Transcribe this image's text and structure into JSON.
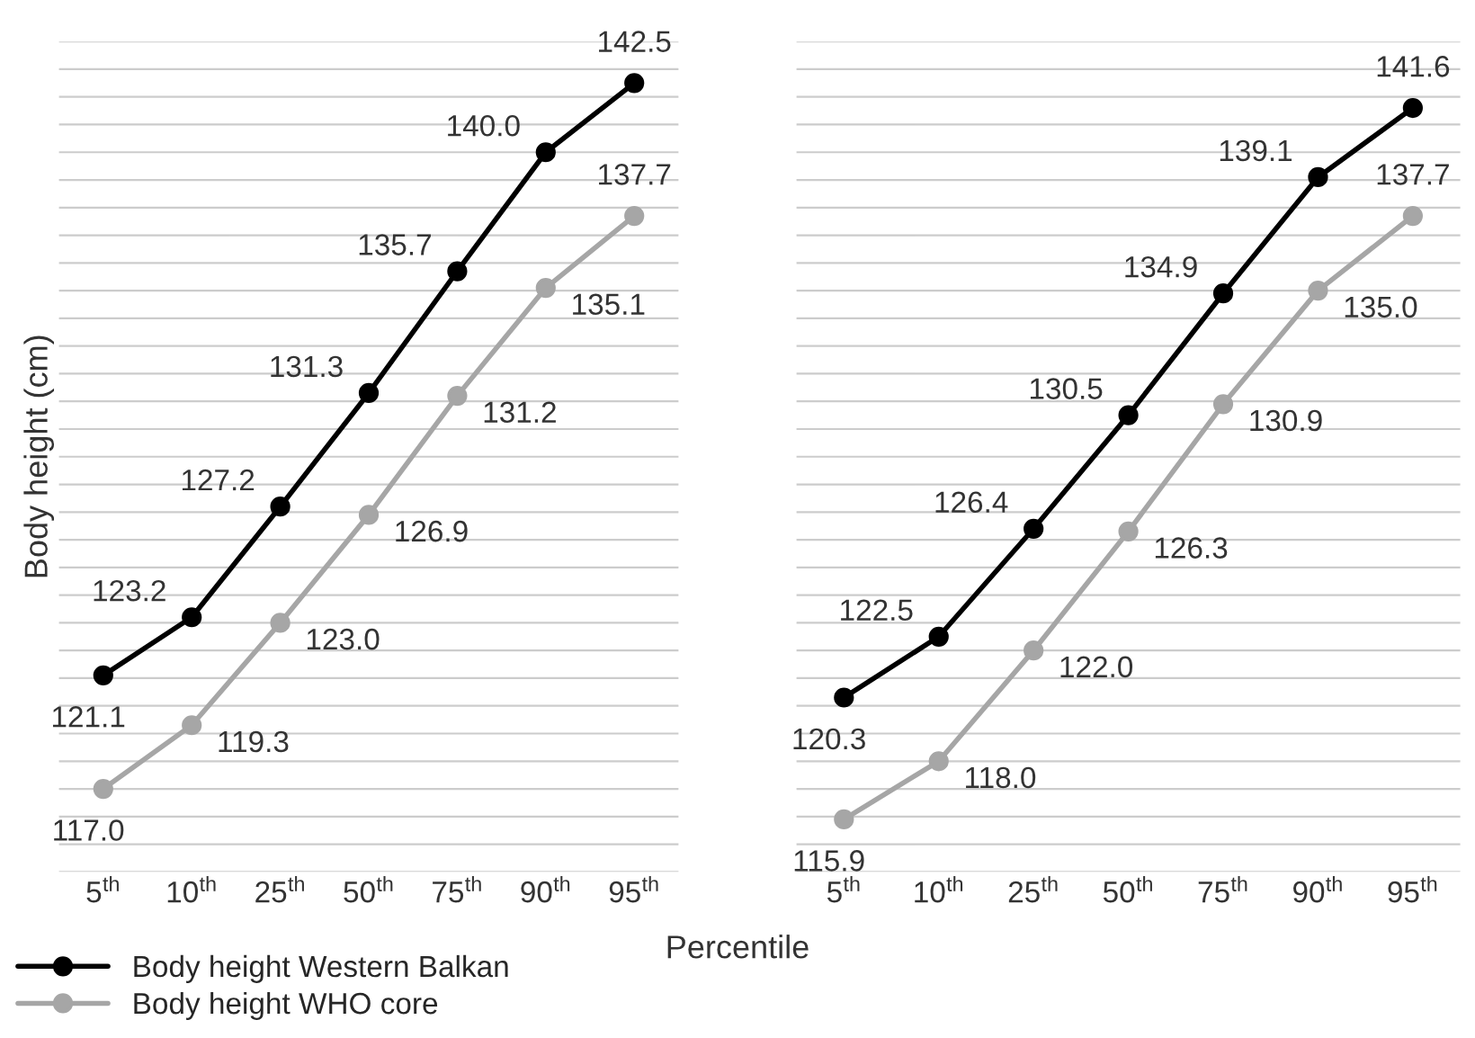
{
  "chart_data": [
    {
      "type": "line",
      "ylabel": "Body height (cm)",
      "xlabel": "Percentile",
      "categories": [
        "5$^{th}$",
        "10$^{th}$",
        "25$^{th}$",
        "50$^{th}$",
        "75$^{th}$",
        "90$^{th}$",
        "95$^{th}$"
      ],
      "series": [
        {
          "name": "Body height Western Balkan",
          "color": "#000000",
          "values": [
            121.1,
            123.2,
            127.2,
            131.3,
            135.7,
            140.0,
            142.5
          ],
          "value_labels": [
            "121.1",
            "123.2",
            "127.2",
            "131.3",
            "135.7",
            "140.0",
            "142.5"
          ]
        },
        {
          "name": "Body height WHO core",
          "color": "#a6a6a6",
          "values": [
            117.0,
            119.3,
            123.0,
            126.9,
            131.2,
            135.1,
            137.7
          ],
          "value_labels": [
            "117.0",
            "119.3",
            "123.0",
            "126.9",
            "131.2",
            "135.1",
            "137.7"
          ]
        }
      ],
      "ylim": [
        114,
        144
      ],
      "yticks": [
        {
          "value": 114,
          "label": null
        },
        {
          "value": 115,
          "label": null
        },
        {
          "value": 116,
          "label": null
        },
        {
          "value": 117,
          "label": null
        },
        {
          "value": 118,
          "label": null
        },
        {
          "value": 119,
          "label": null
        },
        {
          "value": 120,
          "label": null
        },
        {
          "value": 121,
          "label": null
        },
        {
          "value": 122,
          "label": null
        },
        {
          "value": 123,
          "label": null
        },
        {
          "value": 124,
          "label": null
        },
        {
          "value": 125,
          "label": null
        },
        {
          "value": 126,
          "label": null
        },
        {
          "value": 127,
          "label": null
        },
        {
          "value": 128,
          "label": null
        },
        {
          "value": 129,
          "label": null
        },
        {
          "value": 130,
          "label": null
        },
        {
          "value": 131,
          "label": null
        },
        {
          "value": 132,
          "label": null
        },
        {
          "value": 133,
          "label": null
        },
        {
          "value": 134,
          "label": null
        },
        {
          "value": 135,
          "label": null
        },
        {
          "value": 136,
          "label": null
        },
        {
          "value": 137,
          "label": null
        },
        {
          "value": 138,
          "label": null
        },
        {
          "value": 139,
          "label": null
        },
        {
          "value": 140,
          "label": null
        },
        {
          "value": 141,
          "label": null
        },
        {
          "value": 142,
          "label": null
        },
        {
          "value": 143,
          "label": null
        },
        {
          "value": 144,
          "label": null
        }
      ],
      "tick_labels": "x",
      "grid": "y",
      "marker": "circle",
      "line_style": "solid",
      "legend": "bottom left"
    },
    {
      "type": "line",
      "categories": [
        "5$^{th}$",
        "10$^{th}$",
        "25$^{th}$",
        "50$^{th}$",
        "75$^{th}$",
        "90$^{th}$",
        "95$^{th}$"
      ],
      "series": [
        {
          "color": "#000000",
          "values": [
            120.3,
            122.5,
            126.4,
            130.5,
            134.9,
            139.1,
            141.6
          ],
          "value_labels": [
            "120.3",
            "122.5",
            "126.4",
            "130.5",
            "134.9",
            "139.1",
            "141.6"
          ]
        },
        {
          "color": "#a6a6a6",
          "values": [
            115.9,
            118.0,
            122.0,
            126.3,
            130.9,
            135.0,
            137.7
          ],
          "value_labels": [
            "115.9",
            "118.0",
            "122.0",
            "126.3",
            "130.9",
            "135.0",
            "137.7"
          ]
        }
      ],
      "ylim": [
        114,
        144
      ],
      "yticks": [
        {
          "value": 114,
          "label": null
        },
        {
          "value": 115,
          "label": null
        },
        {
          "value": 116,
          "label": null
        },
        {
          "value": 117,
          "label": null
        },
        {
          "value": 118,
          "label": null
        },
        {
          "value": 119,
          "label": null
        },
        {
          "value": 120,
          "label": null
        },
        {
          "value": 121,
          "label": null
        },
        {
          "value": 122,
          "label": null
        },
        {
          "value": 123,
          "label": null
        },
        {
          "value": 124,
          "label": null
        },
        {
          "value": 125,
          "label": null
        },
        {
          "value": 126,
          "label": null
        },
        {
          "value": 127,
          "label": null
        },
        {
          "value": 128,
          "label": null
        },
        {
          "value": 129,
          "label": null
        },
        {
          "value": 130,
          "label": null
        },
        {
          "value": 131,
          "label": null
        },
        {
          "value": 132,
          "label": null
        },
        {
          "value": 133,
          "label": null
        },
        {
          "value": 134,
          "label": null
        },
        {
          "value": 135,
          "label": null
        },
        {
          "value": 136,
          "label": null
        },
        {
          "value": 137,
          "label": null
        },
        {
          "value": 138,
          "label": null
        },
        {
          "value": 139,
          "label": null
        },
        {
          "value": 140,
          "label": null
        },
        {
          "value": 141,
          "label": null
        },
        {
          "value": 142,
          "label": null
        },
        {
          "value": 143,
          "label": null
        },
        {
          "value": 144,
          "label": null
        }
      ],
      "tick_labels": "x",
      "grid": "y",
      "marker": "circle",
      "line_style": "solid"
    }
  ]
}
